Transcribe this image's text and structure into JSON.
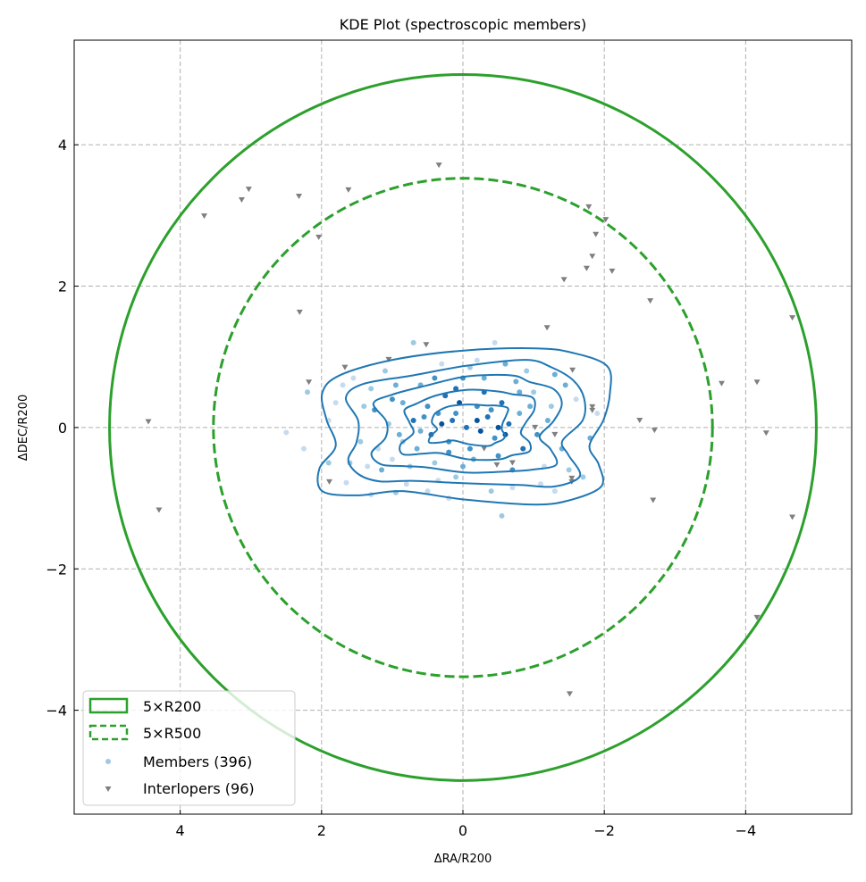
{
  "chart_data": {
    "type": "scatter",
    "title": "KDE Plot (spectroscopic members)",
    "xlabel": "ΔRA/R200",
    "ylabel": "ΔDEC/R200",
    "xlim": [
      5.5,
      -5.5
    ],
    "ylim": [
      -5.47,
      5.48
    ],
    "xticks": [
      4,
      2,
      0,
      -2,
      -4
    ],
    "xtick_labels": [
      "4",
      "2",
      "0",
      "−2",
      "−4"
    ],
    "yticks": [
      4,
      2,
      0,
      -2,
      -4
    ],
    "ytick_labels": [
      "4",
      "2",
      "0",
      "−2",
      "−4"
    ],
    "grid": true,
    "legend_position": "lower-left",
    "colors": {
      "circle": "#2ca02c",
      "contour": "#1f77b4",
      "interloper": "#7f7f7f",
      "member_shades": [
        "#c6dbef",
        "#9ecae1",
        "#6baed6",
        "#4292c6",
        "#2171b5",
        "#08519c"
      ]
    },
    "circles": [
      {
        "label": "5×R200",
        "radius": 5,
        "style": "solid"
      },
      {
        "label": "5×R500",
        "radius": 3.53,
        "style": "dashed"
      }
    ],
    "members": {
      "label": "Members (396)",
      "points": [
        [
          0.1,
          0.2
        ],
        [
          -0.2,
          0.1
        ],
        [
          0.3,
          0.05
        ],
        [
          -0.4,
          0.25
        ],
        [
          0.5,
          0.3
        ],
        [
          -0.6,
          -0.1
        ],
        [
          0.2,
          -0.2
        ],
        [
          -0.1,
          -0.3
        ],
        [
          0.7,
          0.1
        ],
        [
          -0.8,
          0.2
        ],
        [
          0.9,
          -0.1
        ],
        [
          -0.3,
          0.5
        ],
        [
          0.4,
          -0.5
        ],
        [
          -0.5,
          -0.4
        ],
        [
          1.0,
          0.4
        ],
        [
          -1.0,
          0.5
        ],
        [
          0.6,
          0.6
        ],
        [
          -0.7,
          -0.6
        ],
        [
          1.2,
          -0.3
        ],
        [
          -1.2,
          0.1
        ],
        [
          0.0,
          0.7
        ],
        [
          0.1,
          -0.7
        ],
        [
          1.4,
          0.3
        ],
        [
          -1.4,
          -0.3
        ],
        [
          0.8,
          -0.8
        ],
        [
          -0.9,
          0.8
        ],
        [
          1.6,
          -0.5
        ],
        [
          -1.6,
          0.4
        ],
        [
          1.7,
          0.6
        ],
        [
          -1.7,
          -0.7
        ],
        [
          0.3,
          0.9
        ],
        [
          -0.4,
          -0.9
        ],
        [
          1.1,
          0.8
        ],
        [
          -1.1,
          -0.8
        ],
        [
          0.5,
          -0.9
        ],
        [
          -0.6,
          0.9
        ],
        [
          1.9,
          0.1
        ],
        [
          -1.9,
          0.2
        ],
        [
          2.2,
          0.5
        ],
        [
          2.5,
          -0.07
        ],
        [
          2.25,
          -0.3
        ],
        [
          0.7,
          1.2
        ],
        [
          -0.45,
          1.2
        ],
        [
          0.2,
          -1.0
        ],
        [
          -0.55,
          -1.25
        ],
        [
          1.35,
          -0.55
        ],
        [
          -1.3,
          -0.9
        ],
        [
          1.9,
          -0.5
        ],
        [
          1.65,
          -0.78
        ],
        [
          1.3,
          -0.95
        ],
        [
          0.95,
          -0.92
        ],
        [
          -0.2,
          0.95
        ],
        [
          -0.8,
          0.5
        ],
        [
          0.05,
          0.35
        ],
        [
          -0.05,
          0.0
        ],
        [
          0.15,
          0.1
        ],
        [
          -0.25,
          -0.05
        ],
        [
          0.35,
          0.2
        ],
        [
          -0.35,
          0.15
        ],
        [
          0.45,
          -0.1
        ],
        [
          -0.45,
          -0.15
        ],
        [
          0.55,
          0.15
        ],
        [
          -0.55,
          0.35
        ],
        [
          0.65,
          -0.3
        ],
        [
          -0.65,
          0.05
        ],
        [
          0.25,
          0.45
        ],
        [
          -0.15,
          -0.45
        ],
        [
          0.85,
          0.35
        ],
        [
          -0.85,
          -0.3
        ],
        [
          1.05,
          0.05
        ],
        [
          -1.05,
          -0.1
        ],
        [
          1.25,
          0.25
        ],
        [
          -1.25,
          0.3
        ],
        [
          1.45,
          -0.2
        ],
        [
          -1.45,
          0.6
        ],
        [
          0.75,
          -0.55
        ],
        [
          -0.75,
          0.65
        ],
        [
          1.15,
          -0.6
        ],
        [
          -1.15,
          -0.55
        ],
        [
          1.55,
          0.7
        ],
        [
          -1.5,
          -0.6
        ],
        [
          0.35,
          -0.75
        ],
        [
          -0.3,
          0.7
        ],
        [
          0.95,
          0.6
        ],
        [
          -0.95,
          0.3
        ],
        [
          0.0,
          -0.55
        ],
        [
          0.1,
          0.55
        ],
        [
          -0.2,
          0.3
        ],
        [
          0.2,
          -0.35
        ],
        [
          -0.5,
          0.0
        ],
        [
          0.6,
          -0.05
        ],
        [
          1.8,
          0.35
        ],
        [
          -1.8,
          -0.15
        ],
        [
          1.0,
          -0.45
        ],
        [
          -0.1,
          0.85
        ],
        [
          0.4,
          0.7
        ],
        [
          -0.7,
          -0.85
        ],
        [
          1.3,
          0.55
        ],
        [
          -1.3,
          0.75
        ],
        [
          0.85,
          -0.2
        ]
      ]
    },
    "interlopers": {
      "label": "Interlopers (96)",
      "points": [
        [
          3.66,
          2.99
        ],
        [
          3.13,
          3.22
        ],
        [
          3.03,
          3.37
        ],
        [
          2.32,
          3.27
        ],
        [
          1.62,
          3.36
        ],
        [
          0.34,
          3.71
        ],
        [
          2.04,
          2.69
        ],
        [
          2.31,
          1.63
        ],
        [
          2.18,
          0.64
        ],
        [
          1.67,
          0.85
        ],
        [
          1.05,
          0.96
        ],
        [
          0.52,
          1.17
        ],
        [
          4.45,
          0.08
        ],
        [
          4.3,
          -1.17
        ],
        [
          1.89,
          -0.77
        ],
        [
          -1.78,
          3.12
        ],
        [
          -2.02,
          2.94
        ],
        [
          -1.88,
          2.73
        ],
        [
          -1.83,
          2.42
        ],
        [
          -1.75,
          2.25
        ],
        [
          -2.11,
          2.21
        ],
        [
          -1.43,
          2.09
        ],
        [
          -1.19,
          1.41
        ],
        [
          -2.65,
          1.79
        ],
        [
          -1.55,
          0.81
        ],
        [
          -3.66,
          0.62
        ],
        [
          -4.16,
          0.64
        ],
        [
          -4.66,
          1.55
        ],
        [
          -4.29,
          -0.08
        ],
        [
          -2.5,
          0.1
        ],
        [
          -2.71,
          -0.04
        ],
        [
          -2.69,
          -1.03
        ],
        [
          -4.66,
          -1.27
        ],
        [
          -4.16,
          -2.69
        ],
        [
          -1.51,
          -3.77
        ],
        [
          -1.83,
          0.24
        ],
        [
          -1.83,
          0.29
        ],
        [
          -1.54,
          -0.72
        ],
        [
          -1.54,
          -0.77
        ],
        [
          -1.02,
          0.0
        ],
        [
          -0.48,
          -0.53
        ],
        [
          -0.3,
          -0.3
        ],
        [
          -0.7,
          -0.5
        ],
        [
          -1.3,
          -0.1
        ]
      ]
    },
    "contours": {
      "outer": [
        [
          1.99,
          0.49
        ],
        [
          1.74,
          0.74
        ],
        [
          0.98,
          0.96
        ],
        [
          -0.03,
          1.09
        ],
        [
          -1.03,
          1.12
        ],
        [
          -1.54,
          1.06
        ],
        [
          -2.04,
          0.87
        ],
        [
          -2.08,
          0.49
        ],
        [
          -1.99,
          0.11
        ],
        [
          -1.79,
          -0.26
        ],
        [
          -1.92,
          -0.52
        ],
        [
          -1.96,
          -0.83
        ],
        [
          -1.54,
          -1.02
        ],
        [
          -1.03,
          -1.09
        ],
        [
          -0.03,
          -1.02
        ],
        [
          0.86,
          -0.9
        ],
        [
          1.49,
          -0.96
        ],
        [
          1.99,
          -0.9
        ],
        [
          2.03,
          -0.58
        ],
        [
          1.8,
          -0.26
        ],
        [
          1.93,
          0.11
        ]
      ],
      "center": [
        -0.1,
        0.05
      ],
      "level_scales": [
        1.0,
        0.8,
        0.62,
        0.44,
        0.26
      ]
    }
  }
}
